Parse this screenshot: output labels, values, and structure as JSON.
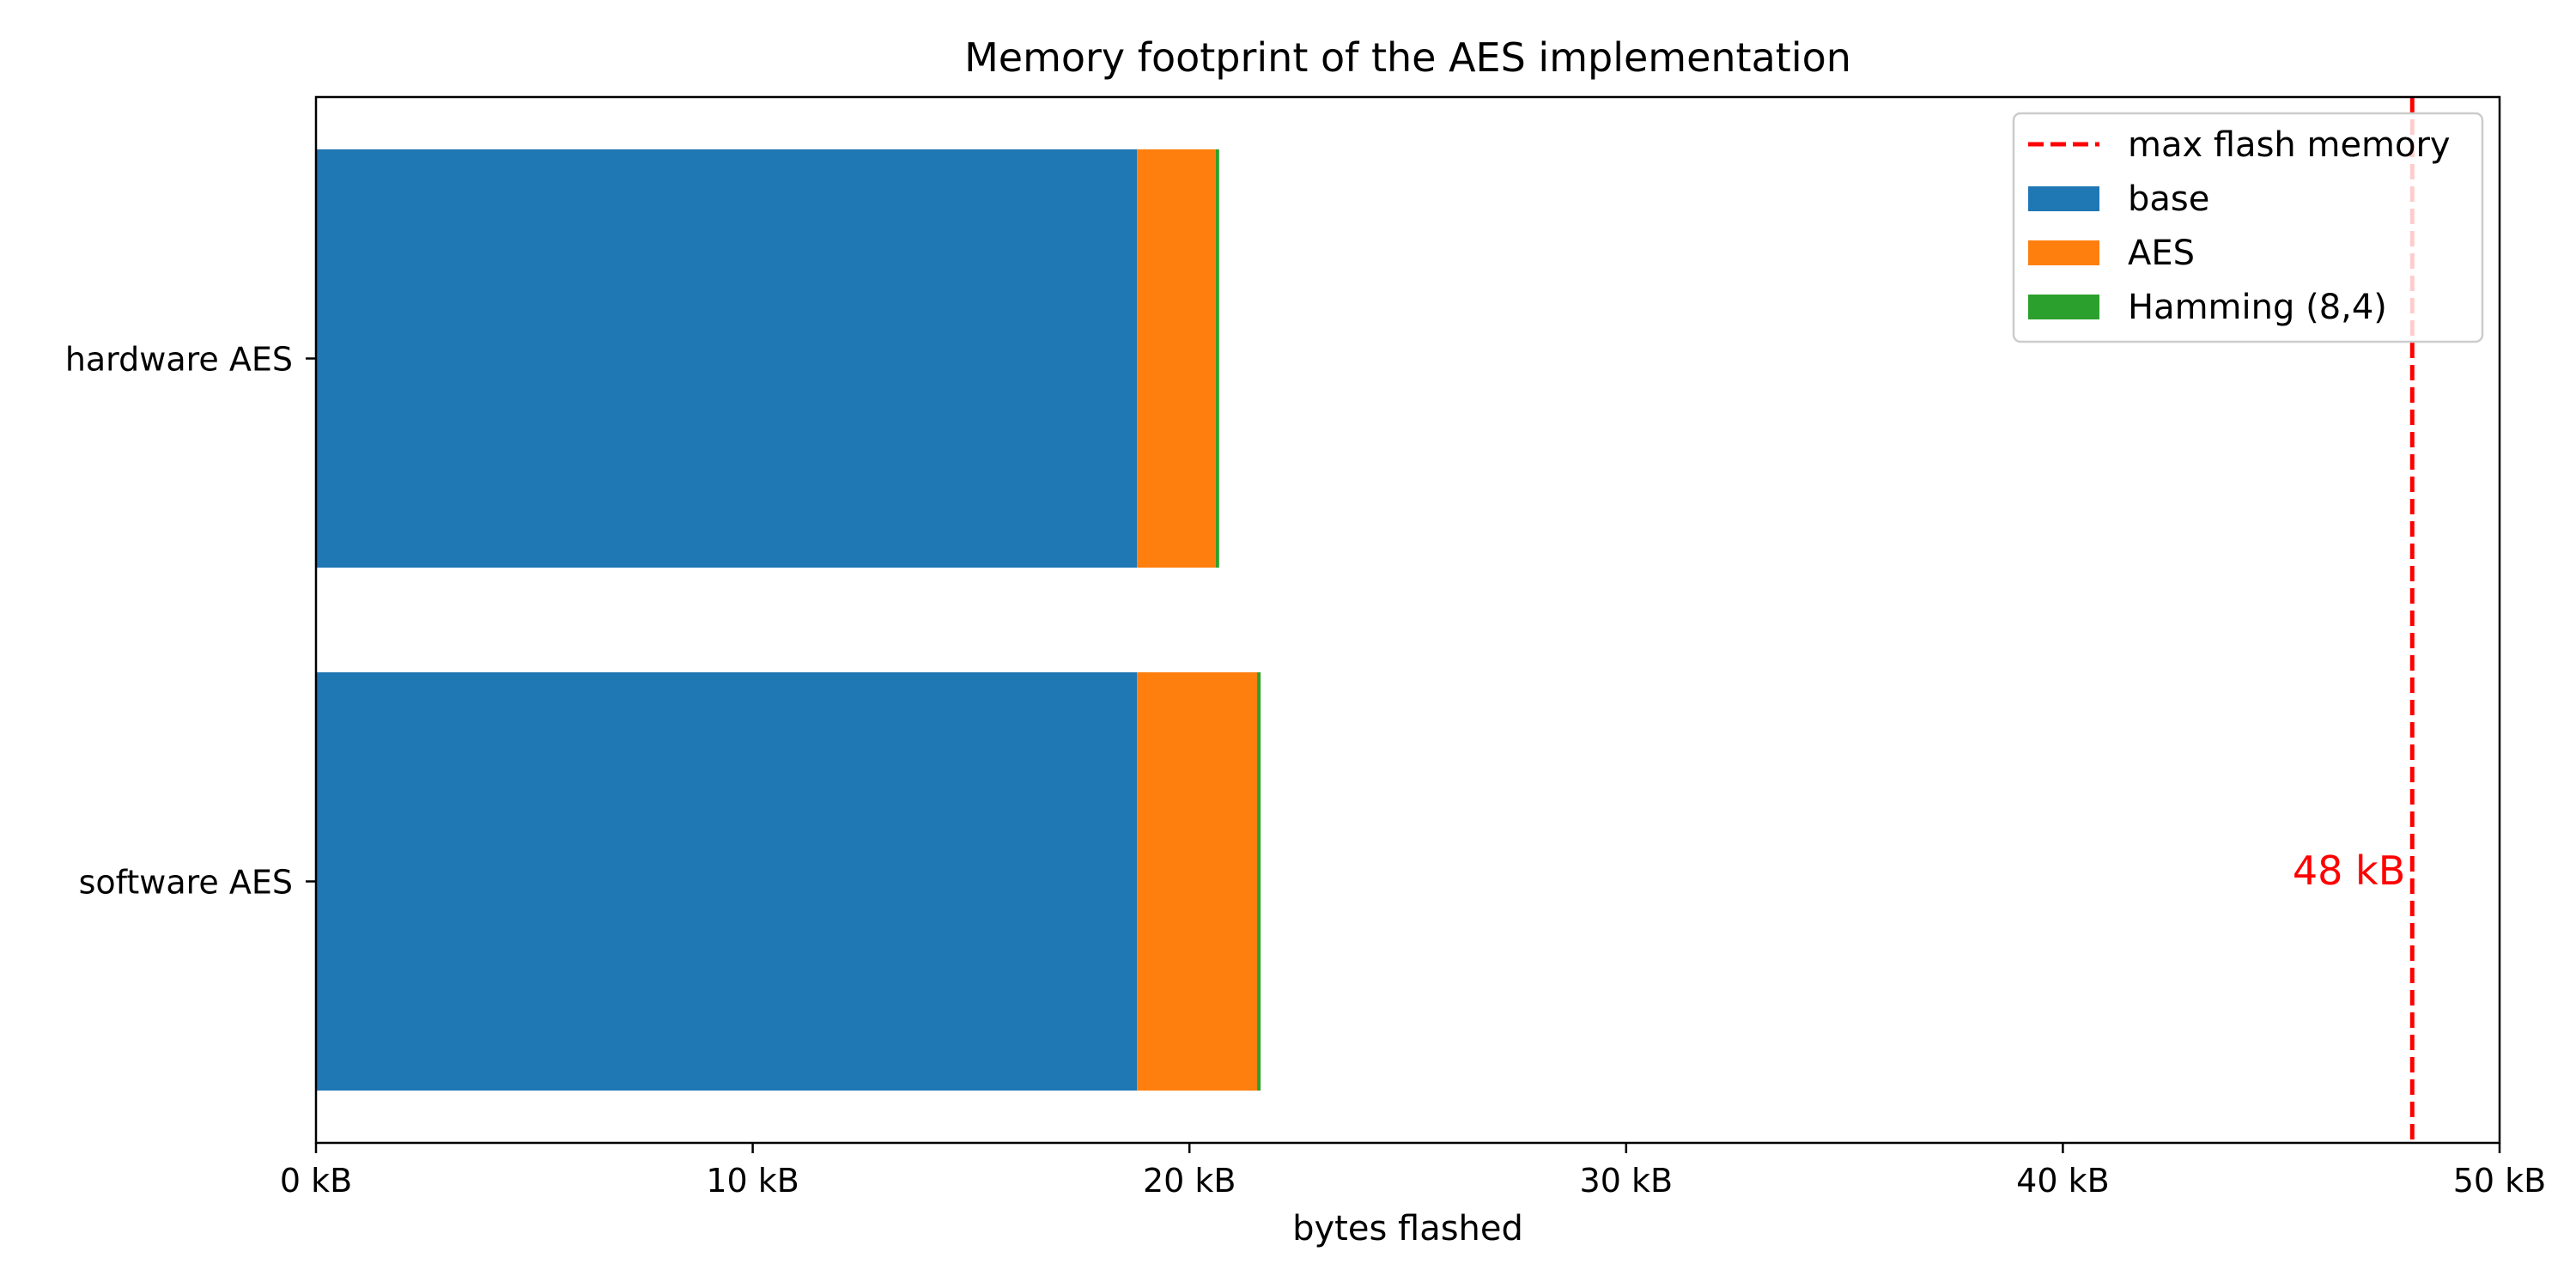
{
  "chart_data": {
    "type": "bar",
    "orientation": "horizontal",
    "stacked": true,
    "title": "Memory footprint of the AES implementation",
    "xlabel": "bytes flashed",
    "ylabel": "",
    "xlim": [
      0,
      50
    ],
    "x_unit": "kB",
    "x_ticks": [
      0,
      10,
      20,
      30,
      40,
      50
    ],
    "x_tick_labels": [
      "0 kB",
      "10 kB",
      "20 kB",
      "30 kB",
      "40 kB",
      "50 kB"
    ],
    "categories": [
      "hardware AES",
      "software AES"
    ],
    "series": [
      {
        "name": "base",
        "color": "#1f77b4",
        "values": [
          18.8,
          18.8
        ]
      },
      {
        "name": "AES",
        "color": "#ff7f0e",
        "values": [
          1.8,
          2.75
        ]
      },
      {
        "name": "Hamming (8,4)",
        "color": "#2ca02c",
        "values": [
          0.08,
          0.08
        ]
      }
    ],
    "reference_line": {
      "name": "max flash memory",
      "value": 48,
      "color": "#ff0000",
      "style": "dashed",
      "label": "48 kB"
    },
    "grid": false,
    "legend_position": "top-right"
  }
}
